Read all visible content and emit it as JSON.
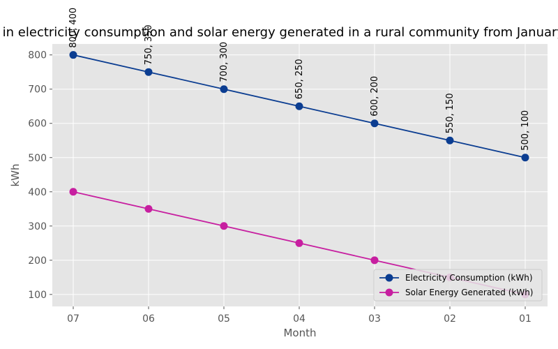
{
  "chart_data": {
    "type": "line",
    "title": "Change in electricity consumption and solar energy generated in a rural community from January to July",
    "xlabel": "Month",
    "ylabel": "kWh",
    "categories": [
      "07",
      "06",
      "05",
      "04",
      "03",
      "02",
      "01"
    ],
    "ylim": [
      65,
      832
    ],
    "yticks": [
      100,
      200,
      300,
      400,
      500,
      600,
      700,
      800
    ],
    "grid": true,
    "legend_position": "lower-right",
    "series": [
      {
        "name": "Electricity Consumption (kWh)",
        "color": "#0b3d91",
        "values": [
          800,
          750,
          700,
          650,
          600,
          550,
          500
        ]
      },
      {
        "name": "Solar Energy Generated (kWh)",
        "color": "#c71fa0",
        "values": [
          400,
          350,
          300,
          250,
          200,
          150,
          100
        ]
      }
    ],
    "annotations": [
      "800, 400",
      "750, 350",
      "700, 300",
      "650, 250",
      "600, 200",
      "550, 150",
      "500, 100"
    ]
  },
  "colors": {
    "plot_background": "#e5e5e5",
    "grid": "#ffffff"
  }
}
